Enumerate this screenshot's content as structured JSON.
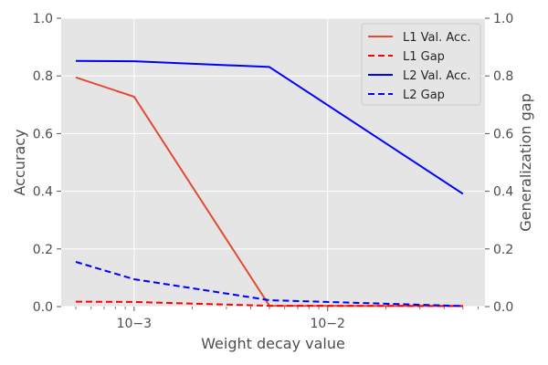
{
  "chart_data": {
    "type": "line",
    "x_scale": "log",
    "xlabel": "Weight decay value",
    "ylabel_left": "Accuracy",
    "ylabel_right": "Generalization gap",
    "xlim": [
      0.00042,
      0.065
    ],
    "ylim_left": [
      0,
      1.0
    ],
    "ylim_right": [
      0,
      1.0
    ],
    "x_ticks": [
      {
        "value": 0.001,
        "label": "10−3"
      },
      {
        "value": 0.01,
        "label": "10−2"
      }
    ],
    "y_ticks_left": [
      "0.0",
      "0.2",
      "0.4",
      "0.6",
      "0.8",
      "1.0"
    ],
    "y_ticks_right": [
      "0.0",
      "0.2",
      "0.4",
      "0.6",
      "0.8",
      "1.0"
    ],
    "grid": true,
    "legend_position": "top-right",
    "x": [
      0.0005,
      0.001,
      0.005,
      0.05
    ],
    "series": [
      {
        "name": "L1 Val. Acc.",
        "values": [
          0.795,
          0.728,
          0.003,
          0.002
        ],
        "color": "#e24a33",
        "dash": "solid"
      },
      {
        "name": "L1 Gap",
        "values": [
          0.017,
          0.016,
          0.003,
          0.002
        ],
        "color": "#ff0000",
        "dash": "dashed"
      },
      {
        "name": "L2 Val. Acc.",
        "values": [
          0.852,
          0.851,
          0.831,
          0.391
        ],
        "color": "#0000ff",
        "dash": "solid"
      },
      {
        "name": "L2 Gap",
        "values": [
          0.155,
          0.095,
          0.022,
          0.002
        ],
        "color": "#0000ff",
        "dash": "dashed"
      }
    ],
    "colors": {
      "plot_background": "#e5e5e5",
      "grid": "#ffffff",
      "legend_background": "#e5e5e5"
    }
  }
}
